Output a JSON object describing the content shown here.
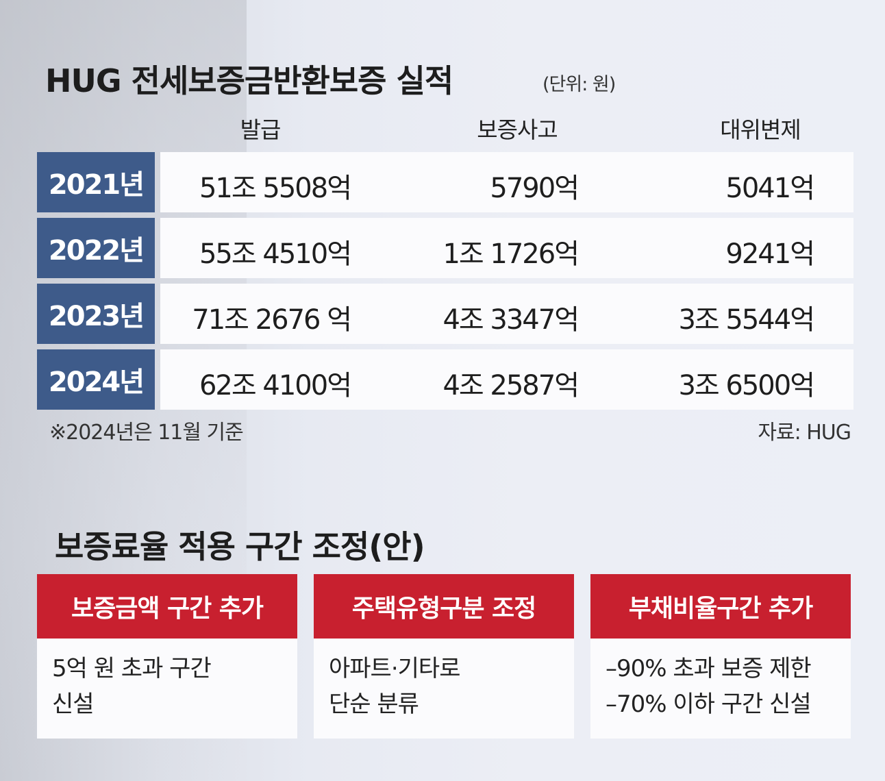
{
  "header": {
    "title": "HUG 전세보증금반환보증 실적",
    "unit": "(단위: 원)"
  },
  "table": {
    "columns": [
      "발급",
      "보증사고",
      "대위변제"
    ],
    "rows": [
      {
        "year": "2021년",
        "issuance": "51조 5508억",
        "accidents": "5790억",
        "subrogation": "5041억"
      },
      {
        "year": "2022년",
        "issuance": "55조 4510억",
        "accidents": "1조 1726억",
        "subrogation": "9241억"
      },
      {
        "year": "2023년",
        "issuance": "71조 2676 억",
        "accidents": "4조 3347억",
        "subrogation": "3조 5544억"
      },
      {
        "year": "2024년",
        "issuance": "62조 4100억",
        "accidents": "4조 2587억",
        "subrogation": "3조 6500억"
      }
    ],
    "note": "※2024년은 11월 기준",
    "source": "자료: HUG"
  },
  "section2": {
    "title": "보증료율 적용 구간 조정(안)",
    "cards": [
      {
        "header": "보증금액 구간 추가",
        "lines": [
          "5억 원 초과 구간",
          "신설"
        ]
      },
      {
        "header": "주택유형구분 조정",
        "lines": [
          "아파트·기타로",
          "단순 분류"
        ]
      },
      {
        "header": "부채비율구간 추가",
        "lines": [
          "–90% 초과 보증 제한",
          "–70% 이하 구간 신설"
        ]
      }
    ]
  },
  "colors": {
    "year_badge": "#3e5b8a",
    "card_header": "#c8202f",
    "cell_bg": "#fbfbfd"
  }
}
